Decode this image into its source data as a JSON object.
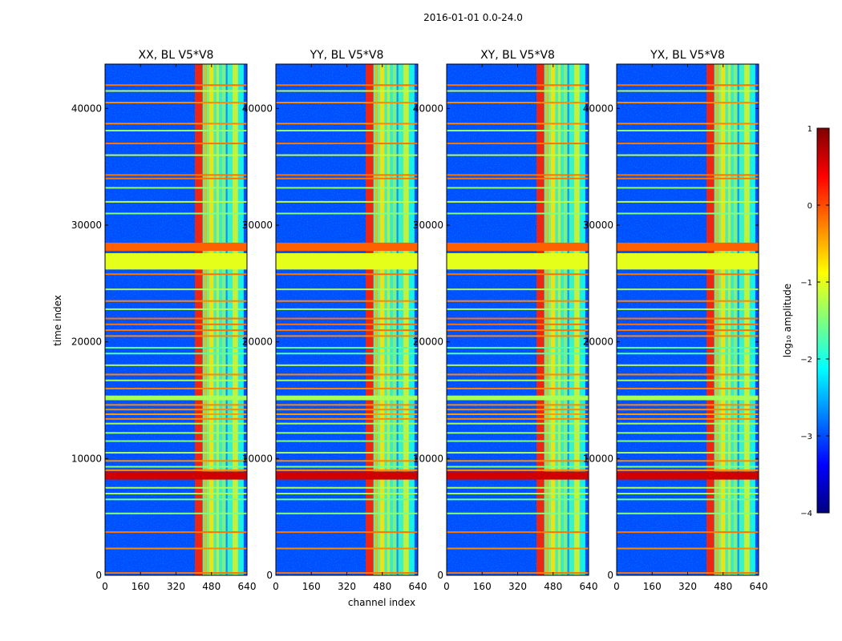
{
  "figure": {
    "suptitle": "2016-01-01 0.0-24.0"
  },
  "chart_data": {
    "type": "heatmap",
    "panels": [
      {
        "title": "XX, BL V5*V8",
        "polarization": "XX"
      },
      {
        "title": "YY, BL V5*V8",
        "polarization": "YY"
      },
      {
        "title": "XY, BL V5*V8",
        "polarization": "XY"
      },
      {
        "title": "YX, BL V5*V8",
        "polarization": "YX"
      }
    ],
    "xlabel": "channel index",
    "ylabel": "time index",
    "xlim": [
      0,
      640
    ],
    "ylim": [
      0,
      43800
    ],
    "xticks": [
      0,
      160,
      320,
      480,
      640
    ],
    "yticks": [
      0,
      10000,
      20000,
      30000,
      40000
    ],
    "colorbar": {
      "label": "log₁₀ amplitude",
      "range": [
        -4,
        1
      ],
      "ticks": [
        1,
        0,
        -1,
        -2,
        -3,
        -4
      ],
      "tick_labels": [
        "1",
        "0",
        "−1",
        "−2",
        "−3",
        "−4"
      ],
      "colormap": "jet",
      "colors": [
        "#00007f",
        "#0000ff",
        "#007fff",
        "#00ffff",
        "#7fff7f",
        "#ffff00",
        "#ff7f00",
        "#ff0000",
        "#7f0000"
      ]
    },
    "background_level": -3.0,
    "bright_channel_bands": [
      {
        "start": 405,
        "end": 440,
        "level": 0.2
      },
      {
        "start": 440,
        "end": 448,
        "level": -1.6
      },
      {
        "start": 448,
        "end": 458,
        "level": -0.6
      },
      {
        "start": 458,
        "end": 470,
        "level": -1.5
      },
      {
        "start": 470,
        "end": 490,
        "level": -0.8
      },
      {
        "start": 490,
        "end": 500,
        "level": -1.8
      },
      {
        "start": 500,
        "end": 515,
        "level": -1.2
      },
      {
        "start": 515,
        "end": 525,
        "level": -1.9
      },
      {
        "start": 525,
        "end": 545,
        "level": -1.5
      },
      {
        "start": 545,
        "end": 552,
        "level": -2.6
      },
      {
        "start": 552,
        "end": 575,
        "level": -1.8
      },
      {
        "start": 575,
        "end": 600,
        "level": -1.1
      },
      {
        "start": 600,
        "end": 625,
        "level": -2.0
      }
    ],
    "flagged_time_blocks": [
      {
        "start": 26200,
        "end": 27600,
        "level": -1.0
      },
      {
        "start": 15000,
        "end": 15400,
        "level": -1.3
      },
      {
        "start": 8200,
        "end": 8900,
        "level": 0.6
      },
      {
        "start": 27800,
        "end": 28500,
        "level": -0.1
      }
    ],
    "time_lines": [
      {
        "t": 42000,
        "level": -0.2
      },
      {
        "t": 41500,
        "level": -1.2
      },
      {
        "t": 40500,
        "level": -0.3
      },
      {
        "t": 38700,
        "level": -0.3
      },
      {
        "t": 38100,
        "level": -1.4
      },
      {
        "t": 37000,
        "level": -0.2
      },
      {
        "t": 36000,
        "level": -1.2
      },
      {
        "t": 34300,
        "level": -0.2
      },
      {
        "t": 34000,
        "level": -0.2
      },
      {
        "t": 33200,
        "level": -1.4
      },
      {
        "t": 32000,
        "level": -1.2
      },
      {
        "t": 31000,
        "level": -1.5
      },
      {
        "t": 28000,
        "level": -0.2
      },
      {
        "t": 25800,
        "level": -0.2
      },
      {
        "t": 24500,
        "level": -1.3
      },
      {
        "t": 23500,
        "level": -0.3
      },
      {
        "t": 22800,
        "level": -1.3
      },
      {
        "t": 22000,
        "level": -0.2
      },
      {
        "t": 21500,
        "level": -0.2
      },
      {
        "t": 21000,
        "level": -0.2
      },
      {
        "t": 20500,
        "level": -0.3
      },
      {
        "t": 19500,
        "level": -1.7
      },
      {
        "t": 19000,
        "level": -1.7
      },
      {
        "t": 18000,
        "level": -1.2
      },
      {
        "t": 17200,
        "level": -0.3
      },
      {
        "t": 16700,
        "level": -1.3
      },
      {
        "t": 16000,
        "level": -0.3
      },
      {
        "t": 14600,
        "level": -0.3
      },
      {
        "t": 14200,
        "level": -0.3
      },
      {
        "t": 13800,
        "level": -0.4
      },
      {
        "t": 13400,
        "level": -0.3
      },
      {
        "t": 13000,
        "level": -1.3
      },
      {
        "t": 12200,
        "level": -1.4
      },
      {
        "t": 11500,
        "level": -1.5
      },
      {
        "t": 10500,
        "level": -1.3
      },
      {
        "t": 9800,
        "level": -0.3
      },
      {
        "t": 9300,
        "level": -1.5
      },
      {
        "t": 9000,
        "level": -0.3
      },
      {
        "t": 7500,
        "level": -1.3
      },
      {
        "t": 7000,
        "level": -1.3
      },
      {
        "t": 6500,
        "level": -1.6
      },
      {
        "t": 5300,
        "level": -1.5
      },
      {
        "t": 3700,
        "level": -0.2
      },
      {
        "t": 2300,
        "level": -0.3
      },
      {
        "t": 200,
        "level": -0.2
      }
    ]
  }
}
